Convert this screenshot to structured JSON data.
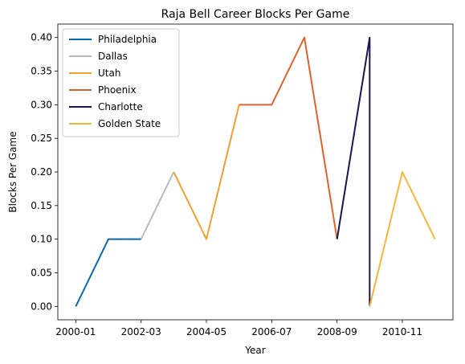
{
  "chart_data": {
    "type": "line",
    "title": "Raja Bell Career Blocks Per Game",
    "xlabel": "Year",
    "ylabel": "Blocks Per Game",
    "x_ticks": [
      "2000-01",
      "2002-03",
      "2004-05",
      "2006-07",
      "2008-09",
      "2010-11"
    ],
    "y_ticks": [
      "0.00",
      "0.05",
      "0.10",
      "0.15",
      "0.20",
      "0.25",
      "0.30",
      "0.35",
      "0.40"
    ],
    "ylim": [
      -0.02,
      0.42
    ],
    "grid": false,
    "legend_position": "top-left",
    "series": [
      {
        "name": "Philadelphia",
        "color": "#0a68ad",
        "points": [
          [
            "2000-01",
            0.0
          ],
          [
            "2001-02",
            0.1
          ],
          [
            "2002-03",
            0.1
          ]
        ]
      },
      {
        "name": "Dallas",
        "color": "#bbbbbb",
        "points": [
          [
            "2002-03",
            0.1
          ],
          [
            "2003-04",
            0.2
          ]
        ]
      },
      {
        "name": "Utah",
        "color": "#f0a131",
        "points": [
          [
            "2003-04",
            0.2
          ],
          [
            "2004-05",
            0.1
          ],
          [
            "2005-06",
            0.3
          ]
        ]
      },
      {
        "name": "Phoenix",
        "color": "#e0612c",
        "points": [
          [
            "2005-06",
            0.3
          ],
          [
            "2006-07",
            0.3
          ],
          [
            "2007-08",
            0.4
          ],
          [
            "2008-09",
            0.1
          ]
        ]
      },
      {
        "name": "Charlotte",
        "color": "#1d1455",
        "points": [
          [
            "2008-09",
            0.1
          ],
          [
            "2009-10",
            0.4
          ],
          [
            "2009-10",
            0.0
          ]
        ]
      },
      {
        "name": "Golden State",
        "color": "#f6b63a",
        "points": [
          [
            "2009-10",
            0.0
          ],
          [
            "2010-11",
            0.2
          ],
          [
            "2011-12",
            0.1
          ]
        ]
      }
    ]
  }
}
